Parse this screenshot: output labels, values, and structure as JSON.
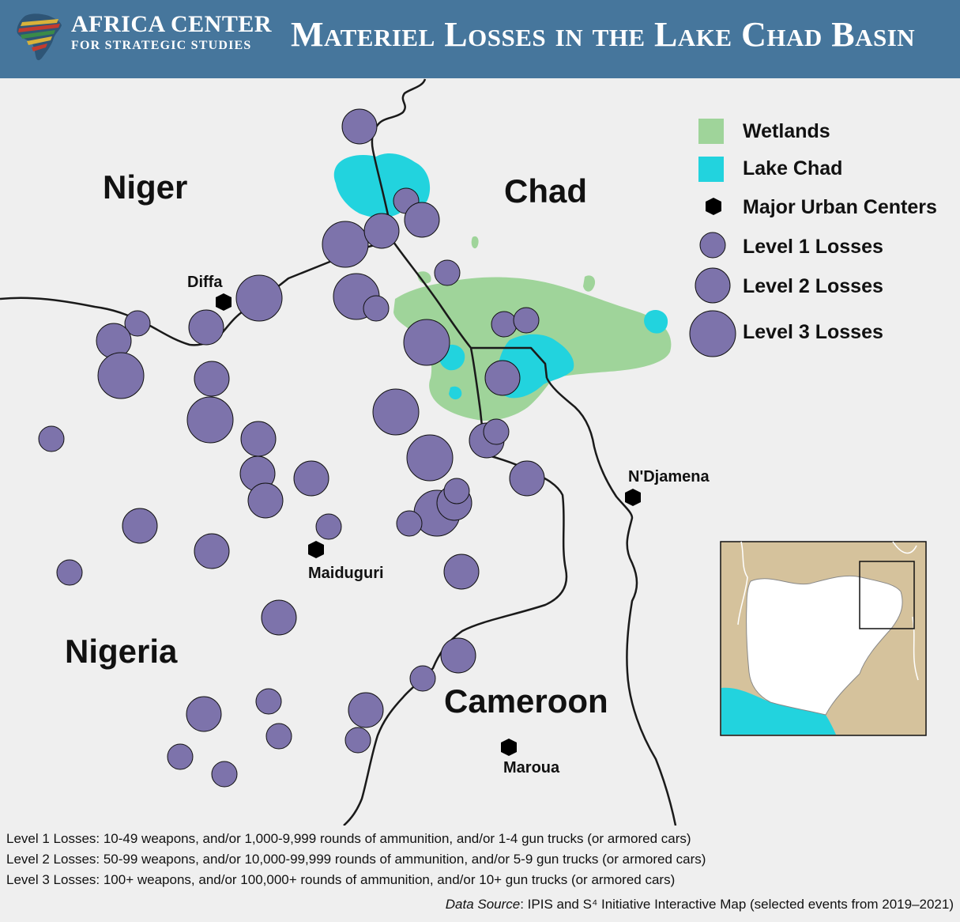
{
  "header": {
    "org_line1": "AFRICA CENTER",
    "org_line2": "FOR STRATEGIC STUDIES",
    "title": "Materiel Losses in the Lake Chad Basin"
  },
  "countries": [
    {
      "label": "Niger"
    },
    {
      "label": "Chad"
    },
    {
      "label": "Nigeria"
    },
    {
      "label": "Cameroon"
    }
  ],
  "cities": [
    {
      "label": "Diffa"
    },
    {
      "label": "N'Djamena"
    },
    {
      "label": "Maiduguri"
    },
    {
      "label": "Maroua"
    }
  ],
  "legend": {
    "items": [
      {
        "label": "Wetlands",
        "color": "#9fd49a"
      },
      {
        "label": "Lake Chad",
        "color": "#22d3de"
      },
      {
        "label": "Major Urban Centers",
        "color": "#000000"
      },
      {
        "label": "Level 1 Losses",
        "color": "#7d73ab"
      },
      {
        "label": "Level 2 Losses",
        "color": "#7d73ab"
      },
      {
        "label": "Level 3 Losses",
        "color": "#7d73ab"
      }
    ]
  },
  "notes": [
    "Level 1 Losses: 10-49 weapons, and/or 1,000-9,999 rounds of ammunition, and/or 1-4 gun trucks (or armored cars)",
    "Level 2 Losses: 50-99 weapons, and/or 10,000-99,999 rounds of ammunition, and/or 5-9 gun trucks (or armored cars)",
    "Level 3 Losses: 100+ weapons, and/or 100,000+ rounds of ammunition, and/or 10+ gun trucks (or armored cars)"
  ],
  "source": {
    "prefix": "Data Source",
    "text": ": IPIS and S⁴ Initiative Interactive Map (selected events from 2019–2021)"
  },
  "colors": {
    "header_bg": "#46769c",
    "map_bg": "#efefef",
    "loss_fill": "#7d73ab",
    "inset_land": "#d5c29c",
    "inset_sea": "#22d3de"
  }
}
